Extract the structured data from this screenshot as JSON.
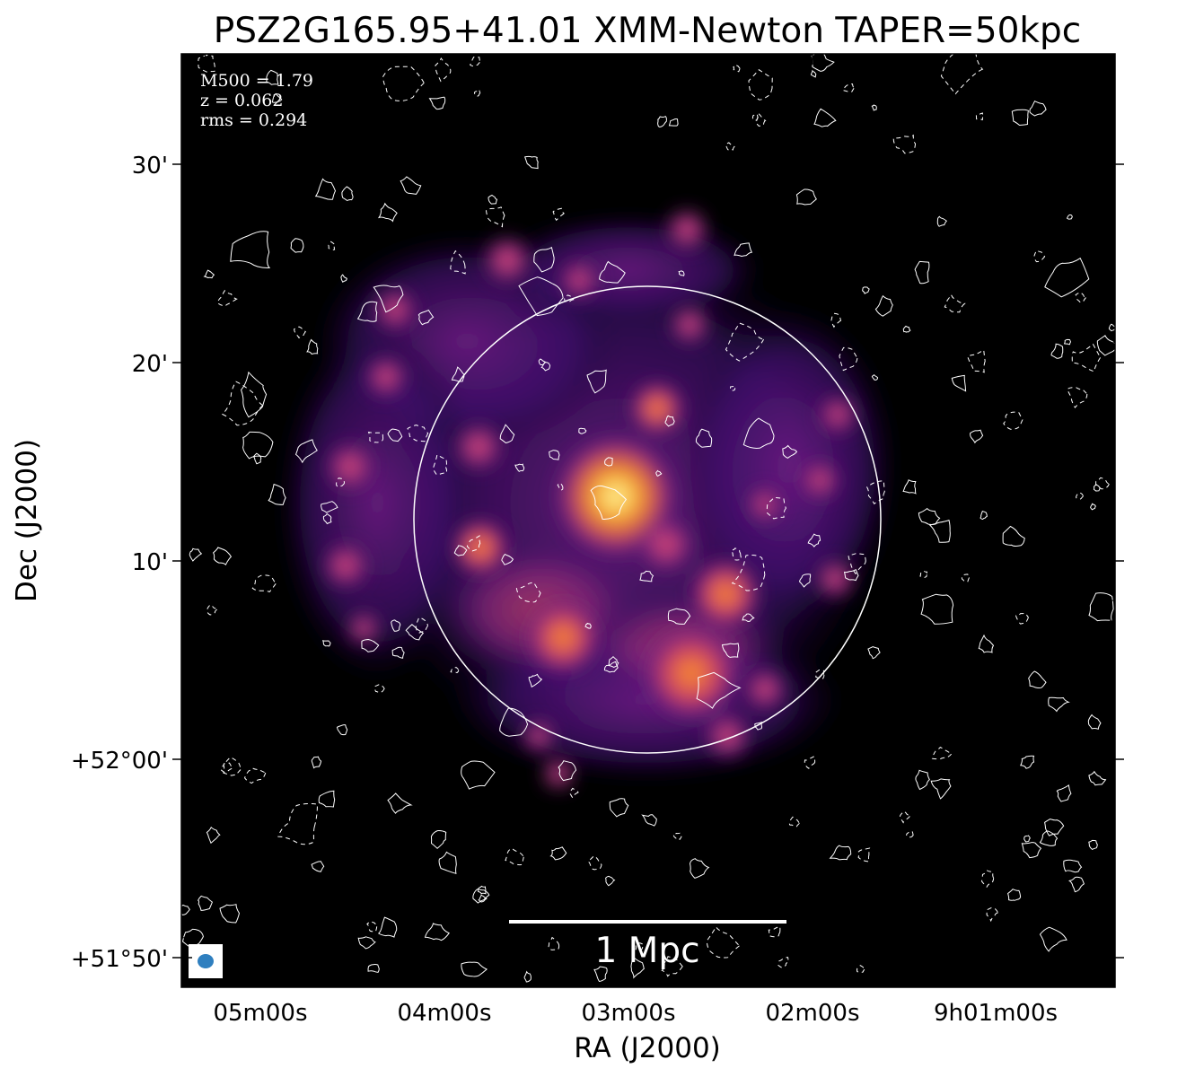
{
  "title": "PSZ2G165.95+41.01 XMM-Newton TAPER=50kpc",
  "annotations": {
    "mass": "M500 = 1.79",
    "redshift": "z = 0.062",
    "rms": "rms = 0.294"
  },
  "scalebar_label": "1 Mpc",
  "axes": {
    "xlabel": "RA (J2000)",
    "ylabel": "Dec (J2000)",
    "x_ticks": [
      "05m00s",
      "04m00s",
      "03m00s",
      "02m00s",
      "9h01m00s"
    ],
    "y_ticks": [
      "+51°50'",
      "+52°00'",
      "10'",
      "20'",
      "30'"
    ]
  },
  "colors": {
    "background": "#000000",
    "colormap": "inferno",
    "contour": "#ffffff",
    "beam": "#2f7fbf"
  }
}
